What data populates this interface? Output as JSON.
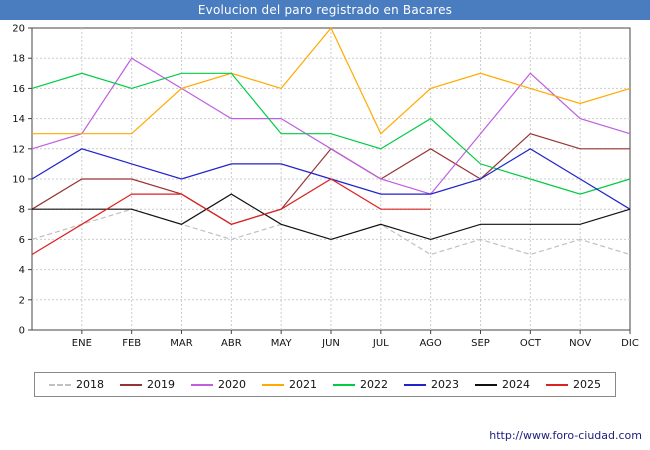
{
  "title": "Evolucion del paro registrado en Bacares",
  "footer": {
    "url": "http://www.foro-ciudad.com"
  },
  "chart_data": {
    "type": "line",
    "title": "Evolucion del paro registrado en Bacares",
    "xlabel": "",
    "ylabel": "",
    "months": [
      "ENE",
      "FEB",
      "MAR",
      "ABR",
      "MAY",
      "JUN",
      "JUL",
      "AGO",
      "SEP",
      "OCT",
      "NOV",
      "DIC"
    ],
    "ylim": [
      0,
      20
    ],
    "ytick_step": 2,
    "grid": true,
    "legend_position": "bottom",
    "first_point_at_left_edge": true,
    "series": [
      {
        "name": "2018",
        "color": "#c0c0c0",
        "dash": true,
        "values": [
          6,
          7,
          8,
          7,
          6,
          7,
          6,
          7,
          5,
          6,
          5,
          6,
          5
        ]
      },
      {
        "name": "2019",
        "color": "#993333",
        "dash": false,
        "values": [
          8,
          10,
          10,
          9,
          7,
          8,
          12,
          10,
          12,
          10,
          13,
          12,
          12
        ]
      },
      {
        "name": "2020",
        "color": "#bf5fe0",
        "dash": false,
        "values": [
          12,
          13,
          18,
          16,
          14,
          14,
          12,
          10,
          9,
          13,
          17,
          14,
          13
        ]
      },
      {
        "name": "2021",
        "color": "#ffaa00",
        "dash": false,
        "values": [
          13,
          13,
          13,
          16,
          17,
          16,
          20,
          13,
          16,
          17,
          16,
          15,
          16
        ]
      },
      {
        "name": "2022",
        "color": "#00cc44",
        "dash": false,
        "values": [
          16,
          17,
          16,
          17,
          17,
          13,
          13,
          12,
          14,
          11,
          10,
          9,
          10
        ]
      },
      {
        "name": "2023",
        "color": "#2222cc",
        "dash": false,
        "values": [
          10,
          12,
          11,
          10,
          11,
          11,
          10,
          9,
          9,
          10,
          12,
          10,
          8
        ]
      },
      {
        "name": "2024",
        "color": "#111111",
        "dash": false,
        "values": [
          8,
          8,
          8,
          7,
          9,
          7,
          6,
          7,
          6,
          7,
          7,
          7,
          8
        ]
      },
      {
        "name": "2025",
        "color": "#dd2222",
        "dash": false,
        "values": [
          5,
          7,
          9,
          9,
          7,
          8,
          10,
          8,
          8
        ]
      }
    ]
  }
}
